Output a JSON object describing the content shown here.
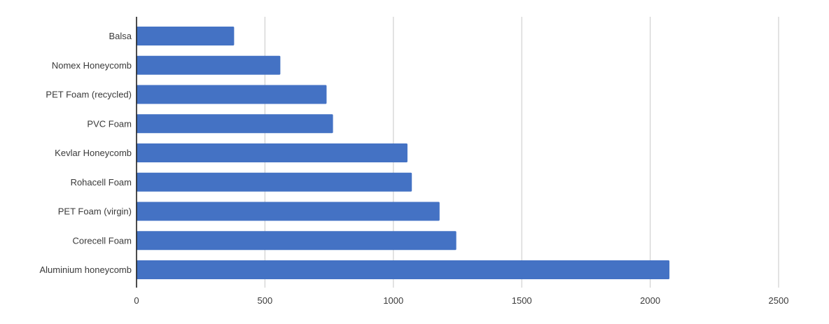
{
  "chart_data": {
    "type": "bar",
    "orientation": "horizontal",
    "categories": [
      "Balsa",
      "Nomex Honeycomb",
      "PET Foam (recycled)",
      "PVC Foam",
      "Kevlar Honeycomb",
      "Rohacell Foam",
      "PET Foam (virgin)",
      "Corecell Foam",
      "Aluminium honeycomb"
    ],
    "values": [
      380,
      560,
      740,
      765,
      1055,
      1072,
      1180,
      1245,
      2075
    ],
    "xlim": [
      0,
      2500
    ],
    "xticks": [
      "0",
      "500",
      "1000",
      "1500",
      "2000",
      "2500"
    ],
    "title": "",
    "xlabel": "",
    "ylabel": "",
    "grid": "vertical",
    "legend": "none",
    "bar_color": "#4472c4"
  }
}
